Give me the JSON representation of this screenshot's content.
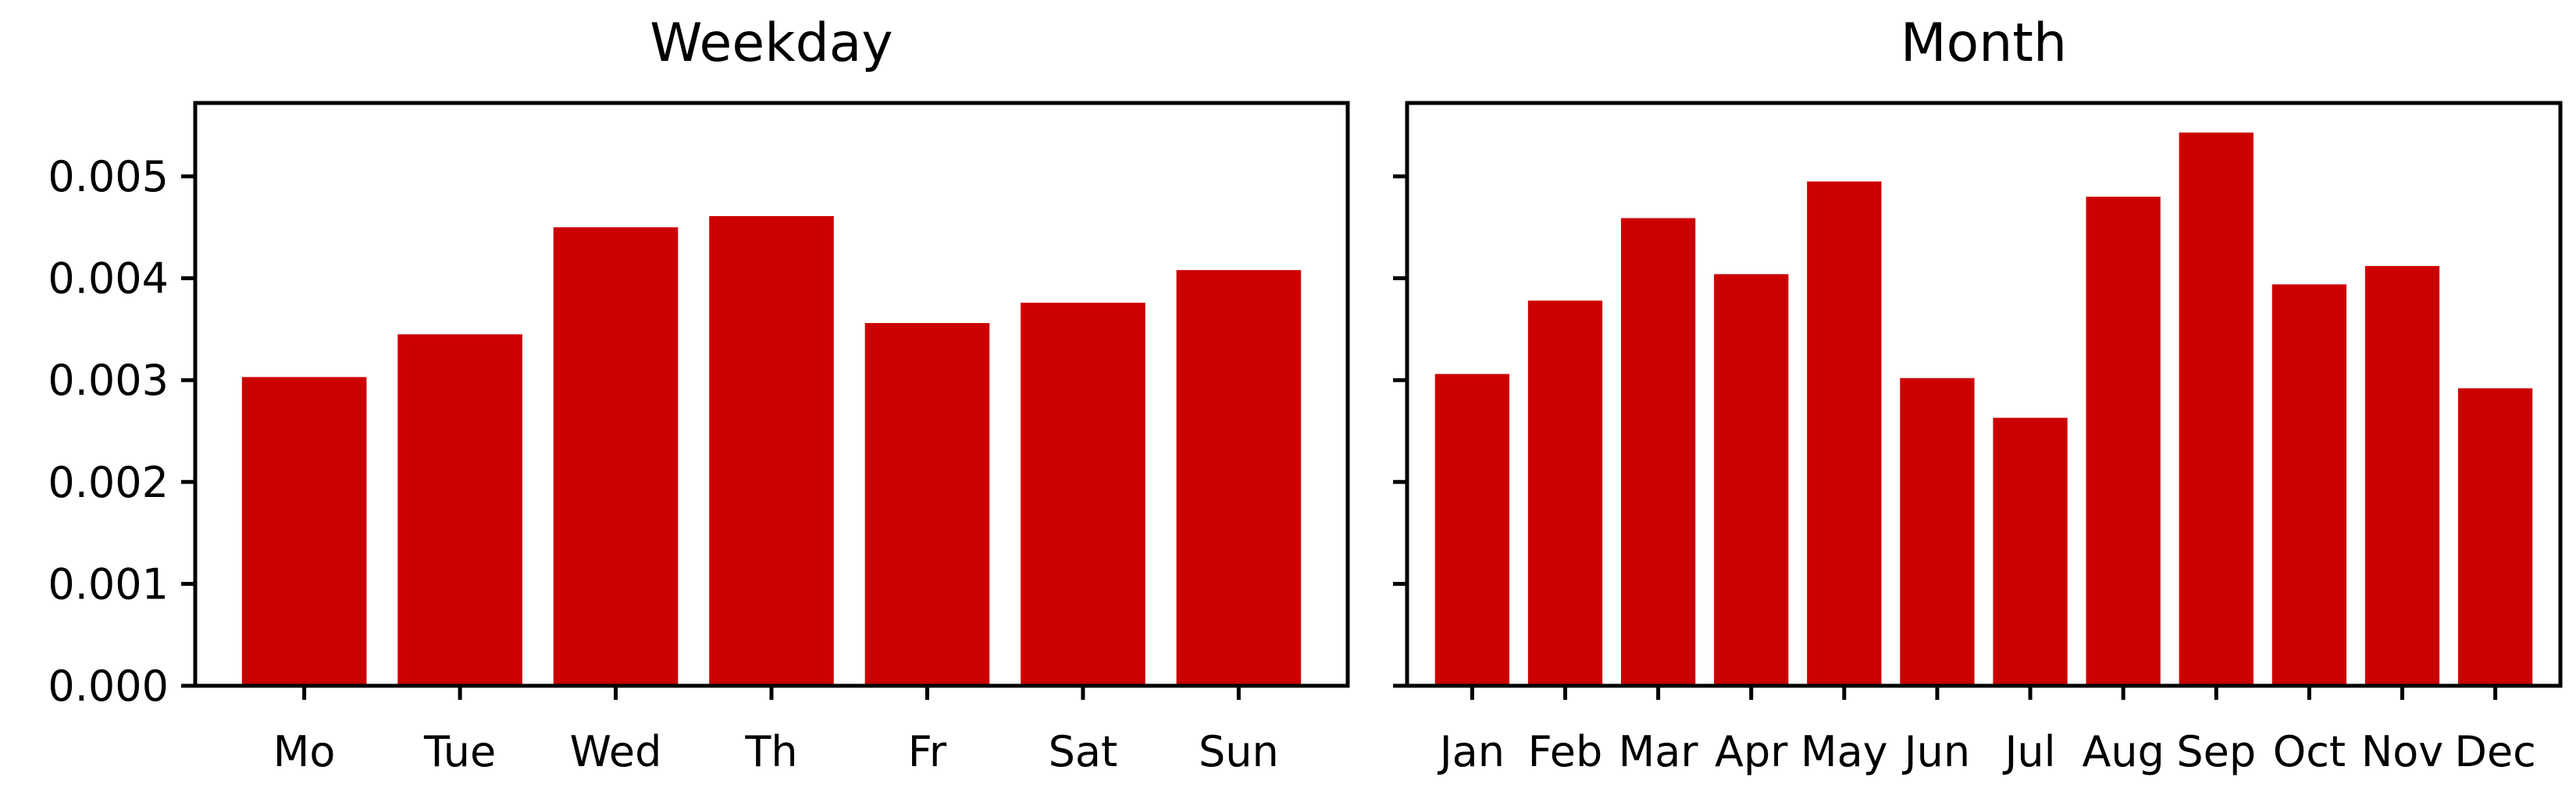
{
  "colors": {
    "bar": "#cc0000",
    "axis": "#000000",
    "background": "#ffffff"
  },
  "chart_data": [
    {
      "type": "bar",
      "title": "Weekday",
      "xlabel": "",
      "ylabel": "",
      "categories": [
        "Mo",
        "Tue",
        "Wed",
        "Th",
        "Fr",
        "Sat",
        "Sun"
      ],
      "values": [
        0.00303,
        0.00345,
        0.0045,
        0.00461,
        0.00356,
        0.00376,
        0.00408
      ],
      "ylim": [
        0,
        0.00572
      ],
      "yticks": [
        "0.000",
        "0.001",
        "0.002",
        "0.003",
        "0.004",
        "0.005"
      ],
      "grid": false
    },
    {
      "type": "bar",
      "title": "Month",
      "xlabel": "",
      "ylabel": "",
      "categories": [
        "Jan",
        "Feb",
        "Mar",
        "Apr",
        "May",
        "Jun",
        "Jul",
        "Aug",
        "Sep",
        "Oct",
        "Nov",
        "Dec"
      ],
      "values": [
        0.00306,
        0.00378,
        0.00459,
        0.00404,
        0.00495,
        0.00302,
        0.00263,
        0.0048,
        0.00543,
        0.00394,
        0.00412,
        0.00292
      ],
      "ylim": [
        0,
        0.00572
      ],
      "yticks": [
        "0.000",
        "0.001",
        "0.002",
        "0.003",
        "0.004",
        "0.005"
      ],
      "grid": false
    }
  ]
}
